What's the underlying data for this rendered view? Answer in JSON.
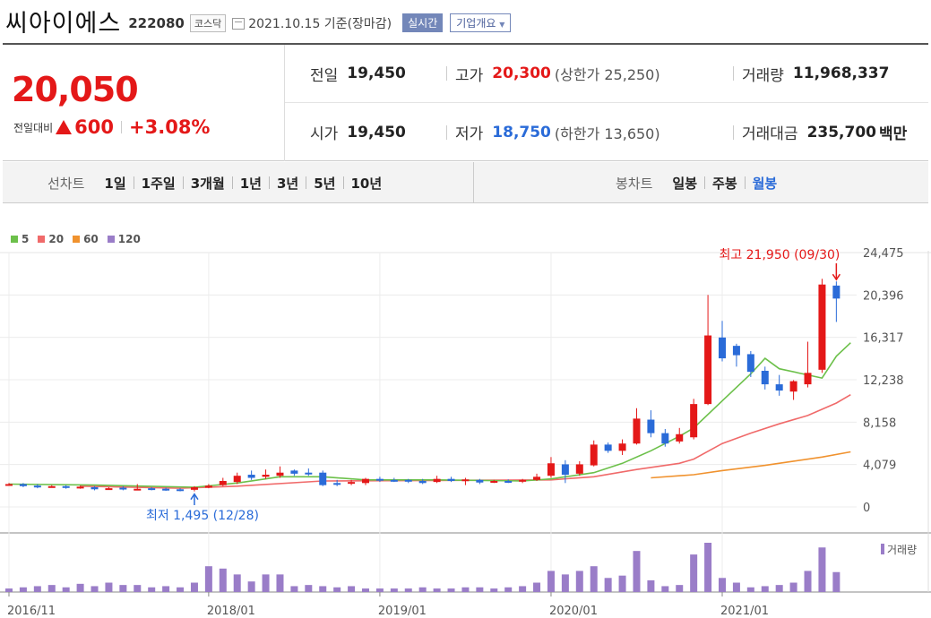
{
  "header": {
    "name": "씨아이에스",
    "code": "222080",
    "market": "코스닥",
    "date": "2021.10.15 기준(장마감)",
    "realtime": "실시간",
    "company": "기업개요"
  },
  "price": {
    "current": "20,050",
    "change_label": "전일대비",
    "change": "600",
    "change_pct": "+3.08%",
    "prev_label": "전일",
    "prev": "19,450",
    "high_label": "고가",
    "high": "20,300",
    "upper_limit": "(상한가 25,250)",
    "volume_label": "거래량",
    "volume": "11,968,337",
    "open_label": "시가",
    "open": "19,450",
    "low_label": "저가",
    "low": "18,750",
    "lower_limit": "(하한가 13,650)",
    "amount_label": "거래대금",
    "amount": "235,700",
    "amount_unit": "백만"
  },
  "tabs": {
    "line_label": "선차트",
    "line": [
      "1일",
      "1주일",
      "3개월",
      "1년",
      "3년",
      "5년",
      "10년"
    ],
    "candle_label": "봉차트",
    "candle": [
      "일봉",
      "주봉",
      "월봉"
    ],
    "candle_selected": 2
  },
  "colors": {
    "up": "#e41818",
    "down": "#2a6bd8",
    "ma5": "#6cc04a",
    "ma20": "#f06a6a",
    "ma60": "#f0922e",
    "ma120": "#9a7dc8",
    "volume": "#9a7dc8"
  },
  "chart_data": {
    "type": "candlestick",
    "legend": [
      {
        "name": "5",
        "color": "#6cc04a"
      },
      {
        "name": "20",
        "color": "#f06a6a"
      },
      {
        "name": "60",
        "color": "#f0922e"
      },
      {
        "name": "120",
        "color": "#9a7dc8"
      }
    ],
    "y_ticks": [
      "24,475",
      "20,396",
      "16,317",
      "12,238",
      "8,158",
      "4,079",
      "0"
    ],
    "ylim": [
      0,
      24475
    ],
    "x_ticks": [
      {
        "label": "2016/11",
        "index": 0
      },
      {
        "label": "2018/01",
        "index": 14
      },
      {
        "label": "2019/01",
        "index": 26
      },
      {
        "label": "2020/01",
        "index": 38
      },
      {
        "label": "2021/01",
        "index": 50
      }
    ],
    "high_annotation": "최고 21,950 (09/30)",
    "high_index": 58,
    "low_annotation": "최저 1,495 (12/28)",
    "low_index": 13,
    "volume_label": "거래량",
    "candles": [
      {
        "o": 2200,
        "c": 2200,
        "h": 2300,
        "l": 2100
      },
      {
        "o": 2200,
        "c": 2000,
        "h": 2300,
        "l": 1900
      },
      {
        "o": 2050,
        "c": 1900,
        "h": 2200,
        "l": 1800
      },
      {
        "o": 1950,
        "c": 2000,
        "h": 2100,
        "l": 1850
      },
      {
        "o": 2000,
        "c": 1850,
        "h": 2100,
        "l": 1750
      },
      {
        "o": 1850,
        "c": 1950,
        "h": 2050,
        "l": 1750
      },
      {
        "o": 1900,
        "c": 1700,
        "h": 2000,
        "l": 1600
      },
      {
        "o": 1750,
        "c": 1800,
        "h": 1900,
        "l": 1650
      },
      {
        "o": 1850,
        "c": 1700,
        "h": 2000,
        "l": 1600
      },
      {
        "o": 1700,
        "c": 1750,
        "h": 2200,
        "l": 1600
      },
      {
        "o": 1800,
        "c": 1700,
        "h": 1900,
        "l": 1600
      },
      {
        "o": 1750,
        "c": 1650,
        "h": 1850,
        "l": 1550
      },
      {
        "o": 1700,
        "c": 1600,
        "h": 1800,
        "l": 1500
      },
      {
        "o": 1650,
        "c": 1900,
        "h": 2000,
        "l": 1495
      },
      {
        "o": 1850,
        "c": 2050,
        "h": 2200,
        "l": 1800
      },
      {
        "o": 2100,
        "c": 2500,
        "h": 2800,
        "l": 2000
      },
      {
        "o": 2400,
        "c": 3000,
        "h": 3300,
        "l": 2200
      },
      {
        "o": 3100,
        "c": 2800,
        "h": 3500,
        "l": 2600
      },
      {
        "o": 2900,
        "c": 3100,
        "h": 3600,
        "l": 2700
      },
      {
        "o": 3000,
        "c": 3300,
        "h": 3900,
        "l": 2800
      },
      {
        "o": 3500,
        "c": 3200,
        "h": 3600,
        "l": 3000
      },
      {
        "o": 3300,
        "c": 3200,
        "h": 3700,
        "l": 3000
      },
      {
        "o": 3300,
        "c": 2100,
        "h": 3500,
        "l": 2000
      },
      {
        "o": 2300,
        "c": 2200,
        "h": 2600,
        "l": 2000
      },
      {
        "o": 2300,
        "c": 2400,
        "h": 2600,
        "l": 2100
      },
      {
        "o": 2300,
        "c": 2700,
        "h": 2800,
        "l": 2100
      },
      {
        "o": 2700,
        "c": 2600,
        "h": 2900,
        "l": 2400
      },
      {
        "o": 2600,
        "c": 2550,
        "h": 2800,
        "l": 2400
      },
      {
        "o": 2600,
        "c": 2500,
        "h": 2700,
        "l": 2300
      },
      {
        "o": 2500,
        "c": 2300,
        "h": 2700,
        "l": 2200
      },
      {
        "o": 2400,
        "c": 2700,
        "h": 3000,
        "l": 2300
      },
      {
        "o": 2700,
        "c": 2500,
        "h": 2900,
        "l": 2400
      },
      {
        "o": 2550,
        "c": 2650,
        "h": 2800,
        "l": 2100
      },
      {
        "o": 2600,
        "c": 2350,
        "h": 2700,
        "l": 2200
      },
      {
        "o": 2400,
        "c": 2500,
        "h": 2600,
        "l": 2300
      },
      {
        "o": 2500,
        "c": 2450,
        "h": 2650,
        "l": 2300
      },
      {
        "o": 2500,
        "c": 2600,
        "h": 2700,
        "l": 2300
      },
      {
        "o": 2600,
        "c": 2900,
        "h": 3200,
        "l": 2500
      },
      {
        "o": 3000,
        "c": 4200,
        "h": 4800,
        "l": 2800
      },
      {
        "o": 4100,
        "c": 3100,
        "h": 4500,
        "l": 2300
      },
      {
        "o": 3200,
        "c": 4100,
        "h": 4400,
        "l": 3000
      },
      {
        "o": 4000,
        "c": 6000,
        "h": 6400,
        "l": 3900
      },
      {
        "o": 6000,
        "c": 5400,
        "h": 6200,
        "l": 5200
      },
      {
        "o": 5400,
        "c": 6100,
        "h": 6500,
        "l": 5000
      },
      {
        "o": 6100,
        "c": 8500,
        "h": 9500,
        "l": 6000
      },
      {
        "o": 8400,
        "c": 7100,
        "h": 9300,
        "l": 6700
      },
      {
        "o": 7100,
        "c": 6100,
        "h": 7500,
        "l": 5800
      },
      {
        "o": 6300,
        "c": 7000,
        "h": 7600,
        "l": 6100
      },
      {
        "o": 6700,
        "c": 9900,
        "h": 10400,
        "l": 6500
      },
      {
        "o": 9900,
        "c": 16500,
        "h": 20400,
        "l": 9800
      },
      {
        "o": 16300,
        "c": 14300,
        "h": 17900,
        "l": 14000
      },
      {
        "o": 15500,
        "c": 14600,
        "h": 15700,
        "l": 13500
      },
      {
        "o": 14700,
        "c": 13000,
        "h": 15000,
        "l": 12500
      },
      {
        "o": 13100,
        "c": 11800,
        "h": 13500,
        "l": 11300
      },
      {
        "o": 11800,
        "c": 11200,
        "h": 12700,
        "l": 10700
      },
      {
        "o": 11100,
        "c": 12100,
        "h": 12200,
        "l": 10300
      },
      {
        "o": 11800,
        "c": 12900,
        "h": 15900,
        "l": 11500
      },
      {
        "o": 13200,
        "c": 21400,
        "h": 21950,
        "l": 12900
      },
      {
        "o": 21300,
        "c": 20050,
        "h": 21700,
        "l": 17800
      }
    ],
    "ma5": [
      [
        0,
        2200
      ],
      [
        6,
        2100
      ],
      [
        13,
        1900
      ],
      [
        16,
        2300
      ],
      [
        19,
        2900
      ],
      [
        22,
        2900
      ],
      [
        25,
        2600
      ],
      [
        30,
        2600
      ],
      [
        36,
        2500
      ],
      [
        38,
        2700
      ],
      [
        41,
        3300
      ],
      [
        43,
        4200
      ],
      [
        45,
        5400
      ],
      [
        47,
        6800
      ],
      [
        48,
        7600
      ],
      [
        50,
        10200
      ],
      [
        52,
        12800
      ],
      [
        53,
        14300
      ],
      [
        54,
        13300
      ],
      [
        56,
        12700
      ],
      [
        57,
        12400
      ],
      [
        58,
        14500
      ],
      [
        59,
        15800
      ]
    ],
    "ma20": [
      [
        5,
        2000
      ],
      [
        12,
        1800
      ],
      [
        16,
        2000
      ],
      [
        22,
        2500
      ],
      [
        30,
        2550
      ],
      [
        38,
        2600
      ],
      [
        41,
        2900
      ],
      [
        44,
        3600
      ],
      [
        47,
        4200
      ],
      [
        48,
        4600
      ],
      [
        50,
        6100
      ],
      [
        52,
        7100
      ],
      [
        54,
        8000
      ],
      [
        56,
        8800
      ],
      [
        58,
        10000
      ],
      [
        59,
        10800
      ]
    ],
    "ma60": [
      [
        45,
        2800
      ],
      [
        48,
        3100
      ],
      [
        50,
        3500
      ],
      [
        53,
        4000
      ],
      [
        55,
        4400
      ],
      [
        57,
        4800
      ],
      [
        59,
        5300
      ]
    ],
    "volume": [
      3,
      4,
      5,
      6,
      4,
      7,
      5,
      8,
      6,
      6,
      4,
      5,
      4,
      8,
      22,
      20,
      15,
      9,
      15,
      15,
      5,
      6,
      5,
      4,
      5,
      3,
      3,
      3,
      3,
      4,
      3,
      3,
      4,
      4,
      3,
      4,
      5,
      8,
      18,
      15,
      18,
      22,
      12,
      14,
      35,
      10,
      5,
      6,
      32,
      42,
      12,
      8,
      4,
      5,
      6,
      8,
      18,
      38,
      17
    ]
  }
}
